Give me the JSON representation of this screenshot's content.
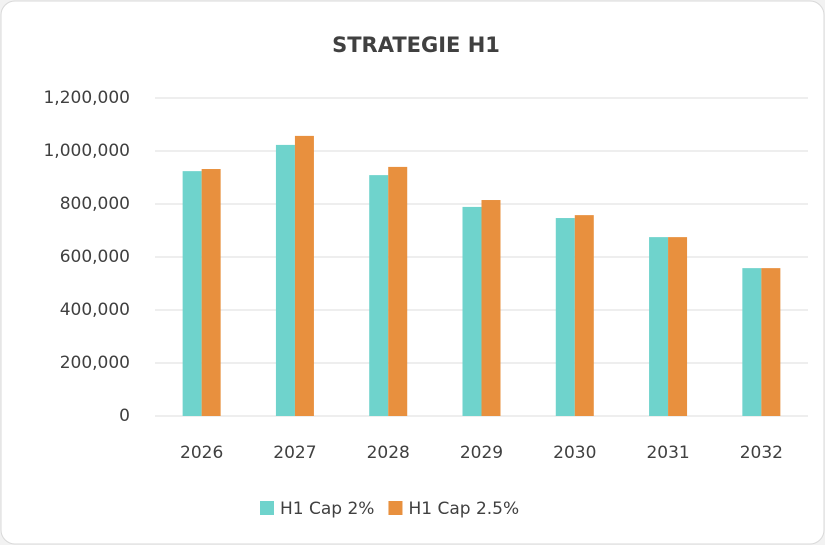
{
  "chart_data": {
    "type": "bar",
    "title": "STRATEGIE H1",
    "categories": [
      "2026",
      "2027",
      "2028",
      "2029",
      "2030",
      "2031",
      "2032"
    ],
    "series": [
      {
        "name": "H1 Cap 2%",
        "color": "#6fd3cc",
        "values": [
          924000,
          1023000,
          909000,
          789000,
          747000,
          675000,
          558000
        ]
      },
      {
        "name": "H1 Cap 2.5%",
        "color": "#e8903e",
        "values": [
          932000,
          1057000,
          940000,
          815000,
          758000,
          675000,
          558000
        ]
      }
    ],
    "ylim": [
      0,
      1200000
    ],
    "yticks": [
      0,
      {
        "value": 200000,
        "label": "200,000"
      },
      {
        "value": 400000,
        "label": "400,000"
      },
      {
        "value": 600000,
        "label": "600,000"
      },
      {
        "value": 800000,
        "label": "800,000"
      },
      {
        "value": 1000000,
        "label": "1,000,000"
      },
      {
        "value": 1200000,
        "label": "1,200,000"
      }
    ],
    "grid": true,
    "legend": "bottom"
  }
}
